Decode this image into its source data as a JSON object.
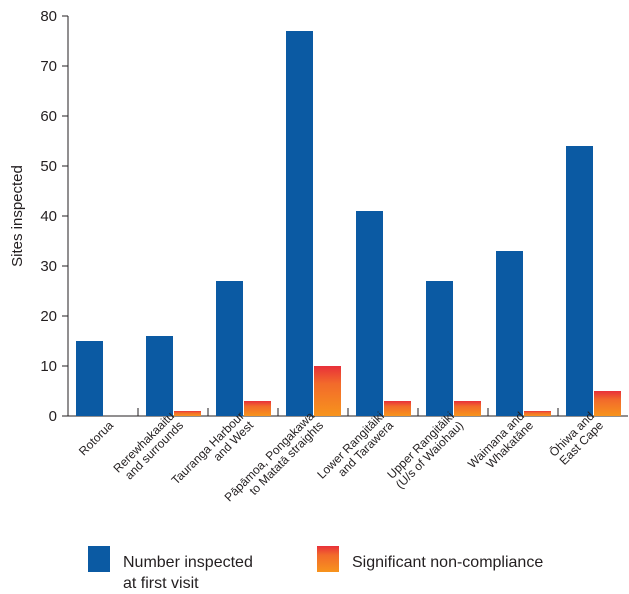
{
  "chart_data": {
    "type": "bar",
    "title": "",
    "xlabel": "",
    "ylabel": "Sites inspected",
    "ylim": [
      0,
      80
    ],
    "yticks": [
      0,
      10,
      20,
      30,
      40,
      50,
      60,
      70,
      80
    ],
    "grid": false,
    "legend_position": "bottom",
    "categories": [
      [
        "Rotorua"
      ],
      [
        "Rerewhakaaitu",
        "and surrounds"
      ],
      [
        "Tauranga Harbour",
        "and West"
      ],
      [
        "Pāpāmoa, Pongakawa",
        "to Matatā straights"
      ],
      [
        "Lower Rangitāiki",
        "and Tarawera"
      ],
      [
        "Upper Rangitāiki",
        "(U/s of Waiohau)"
      ],
      [
        "Waimana and",
        "Whakatāne"
      ],
      [
        "Ōhiwa and",
        "East Cape"
      ]
    ],
    "series": [
      {
        "name": "Number inspected at first visit",
        "legend_lines": [
          "Number inspected",
          "at first visit"
        ],
        "color": "#0b5aa3",
        "values": [
          15,
          16,
          27,
          77,
          41,
          27,
          33,
          54
        ]
      },
      {
        "name": "Significant non-compliance",
        "legend_lines": [
          "Significant non-compliance"
        ],
        "color": "#f7941d",
        "color_top": "#e8303a",
        "values": [
          0,
          1,
          3,
          10,
          3,
          3,
          1,
          5
        ]
      }
    ]
  }
}
